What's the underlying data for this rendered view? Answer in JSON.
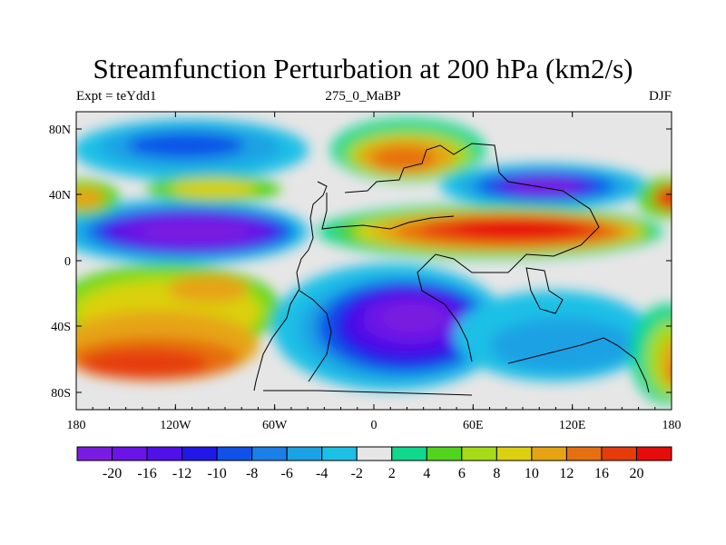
{
  "title": "Streamfunction Perturbation at 200 hPa (km2/s)",
  "subtitle_left": "Expt = teYdd1",
  "subtitle_center": "275_0_MaBP",
  "subtitle_right": "DJF",
  "lat_labels": [
    "80N",
    "40N",
    "0",
    "40S",
    "80S"
  ],
  "lon_labels": [
    "180",
    "120W",
    "60W",
    "0",
    "60E",
    "120E",
    "180"
  ],
  "colorbar": {
    "colors": [
      "#7a1ce0",
      "#6a14e6",
      "#5010e8",
      "#2018e6",
      "#1052e8",
      "#1a7fe6",
      "#1aa2e4",
      "#1cc0e6",
      "#e6e6e6",
      "#10d88c",
      "#52d41c",
      "#a4dc18",
      "#dcd010",
      "#e6a414",
      "#e67010",
      "#e63c0c",
      "#e60c0c"
    ],
    "labels": [
      "-20",
      "-16",
      "-12",
      "-10",
      "-8",
      "-6",
      "-4",
      "-2",
      "2",
      "4",
      "6",
      "8",
      "10",
      "12",
      "16",
      "20"
    ]
  }
}
